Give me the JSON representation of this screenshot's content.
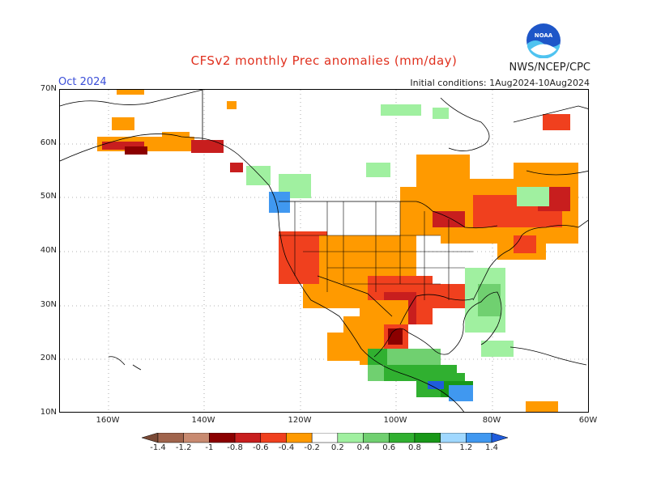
{
  "header": {
    "title": "CFSv2 monthly Prec anomalies (mm/day)",
    "month": "Oct 2024",
    "agency": "NWS/NCEP/CPC",
    "initial_conditions": "Initial conditions: 1Aug2024-10Aug2024",
    "logo_text": "NOAA"
  },
  "axes": {
    "lat_labels": [
      "70N",
      "60N",
      "50N",
      "40N",
      "30N",
      "20N",
      "10N"
    ],
    "lon_labels": [
      "160W",
      "140W",
      "120W",
      "100W",
      "80W",
      "60W"
    ]
  },
  "legend": {
    "labels": [
      "-1.4",
      "-1.2",
      "-1",
      "-0.8",
      "-0.6",
      "-0.4",
      "-0.2",
      "0.2",
      "0.4",
      "0.6",
      "0.8",
      "1",
      "1.2",
      "1.4"
    ],
    "colors": [
      "#7a4a36",
      "#a0644c",
      "#c88a70",
      "#8b0000",
      "#c81e1e",
      "#f0401e",
      "#ff9a00",
      "#ffffff",
      "#a0f0a0",
      "#70d070",
      "#30b030",
      "#189818",
      "#a0d8ff",
      "#4098f0",
      "#1f5cdc"
    ]
  },
  "colors": {
    "dry_strong": "#c81e1e",
    "dry_moderate": "#f0401e",
    "dry_weak": "#ff9a00",
    "wet_weak": "#a0f0a0",
    "wet_moderate": "#30b030",
    "wet_strong": "#4098f0"
  }
}
